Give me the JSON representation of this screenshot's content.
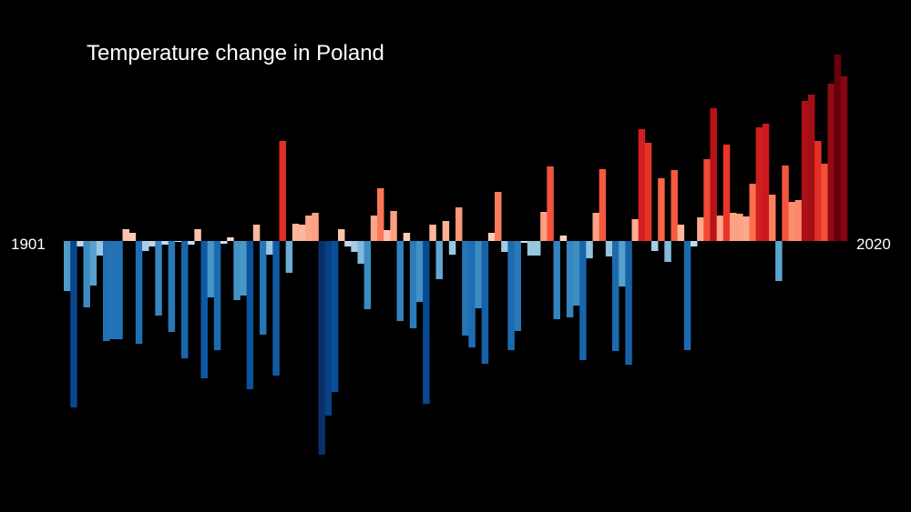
{
  "chart_data": {
    "type": "bar",
    "title": "Temperature change in Poland",
    "start_label": "1901",
    "end_label": "2020",
    "x_start": 1901,
    "x_end": 2020,
    "ylabel": "",
    "xlabel": "",
    "grid": false,
    "units_note": "relative anomaly (estimated)",
    "ylim": [
      -2.4,
      2.1
    ],
    "values": [
      -0.55,
      -1.83,
      -0.06,
      -0.73,
      -0.49,
      -0.16,
      -1.1,
      -1.08,
      -1.08,
      0.13,
      0.09,
      -1.13,
      -0.11,
      -0.06,
      -0.82,
      -0.04,
      -1.0,
      -0.01,
      -1.29,
      -0.04,
      0.13,
      -1.51,
      -0.62,
      -1.2,
      -0.03,
      0.04,
      -0.65,
      -0.6,
      -1.63,
      0.18,
      -1.03,
      -0.15,
      -1.48,
      1.1,
      -0.35,
      0.19,
      0.18,
      0.28,
      0.31,
      -2.35,
      -1.92,
      -1.66,
      0.13,
      -0.06,
      -0.12,
      -0.25,
      -0.75,
      0.28,
      0.58,
      0.12,
      0.33,
      -0.88,
      0.09,
      -0.96,
      -0.67,
      -1.79,
      0.18,
      -0.42,
      0.22,
      -0.15,
      0.37,
      -1.04,
      -1.17,
      -0.74,
      -1.35,
      0.09,
      0.54,
      -0.12,
      -1.2,
      -0.99,
      -0.02,
      -0.16,
      -0.16,
      0.32,
      0.82,
      -0.86,
      0.06,
      -0.84,
      -0.71,
      -1.31,
      -0.19,
      0.31,
      0.79,
      -0.17,
      -1.21,
      -0.5,
      -1.36,
      0.24,
      1.23,
      1.08,
      -0.11,
      0.69,
      -0.23,
      0.78,
      0.18,
      -1.2,
      -0.06,
      0.26,
      0.9,
      1.46,
      0.28,
      1.06,
      0.31,
      0.3,
      0.27,
      0.63,
      1.25,
      1.29,
      0.51,
      -0.44,
      0.83,
      0.43,
      0.45,
      1.54,
      1.61,
      1.1,
      0.85,
      1.73,
      2.05,
      1.81
    ]
  }
}
